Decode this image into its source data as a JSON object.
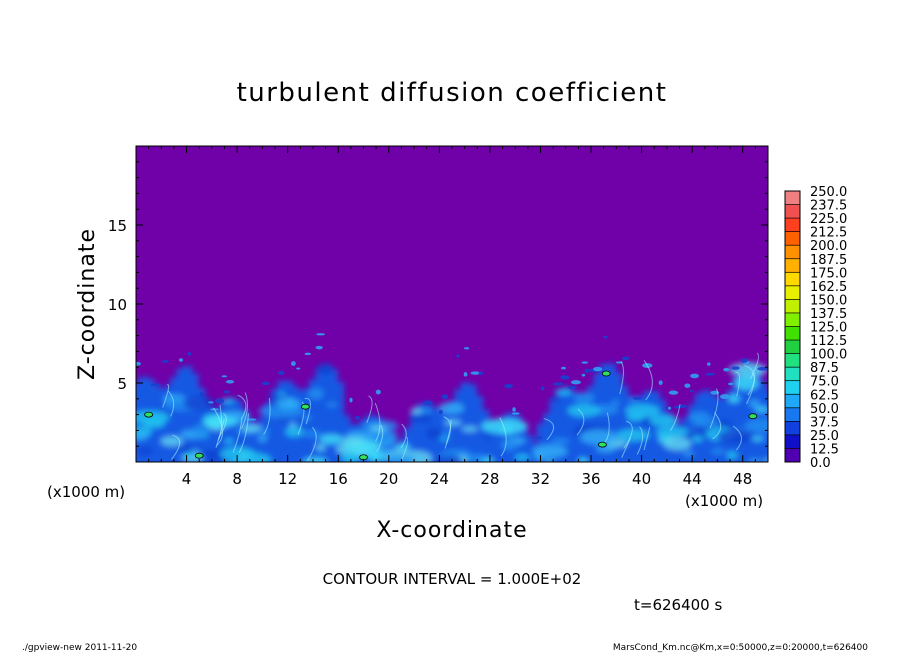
{
  "chart_data": {
    "type": "heatmap",
    "title": "turbulent diffusion coefficient",
    "xlabel": "X-coordinate",
    "ylabel": "Z-coordinate",
    "x_unit_left": "(x1000 m)",
    "x_unit_right": "(x1000 m)",
    "xlim": [
      0,
      50
    ],
    "ylim": [
      0,
      20
    ],
    "x_ticks": [
      "4",
      "8",
      "12",
      "16",
      "20",
      "24",
      "28",
      "32",
      "36",
      "40",
      "44",
      "48"
    ],
    "y_ticks": [
      "5",
      "10",
      "15"
    ],
    "colorbar_levels": [
      "250.0",
      "237.5",
      "225.0",
      "212.5",
      "200.0",
      "187.5",
      "175.0",
      "162.5",
      "150.0",
      "137.5",
      "125.0",
      "112.5",
      "100.0",
      "87.5",
      "75.0",
      "62.5",
      "50.0",
      "37.5",
      "25.0",
      "12.5",
      "0.0"
    ],
    "colorbar_colors": [
      "#f08080",
      "#f05050",
      "#ff4020",
      "#ff6000",
      "#ff9000",
      "#ffb000",
      "#ffd800",
      "#e8f000",
      "#c0f000",
      "#80f000",
      "#40e000",
      "#20d040",
      "#20e080",
      "#20e0c0",
      "#20d0f0",
      "#20a8f8",
      "#1878f0",
      "#1040e0",
      "#1010c8",
      "#5000b0"
    ],
    "background_color": "#7000a8",
    "contour_interval_text": "CONTOUR INTERVAL = 1.000E+02",
    "time_text": "t=626400 s"
  },
  "footer": {
    "left": "./gpview-new   2011-11-20",
    "right": "MarsCond_Km.nc@Km,x=0:50000,z=0:20000,t=626400"
  }
}
